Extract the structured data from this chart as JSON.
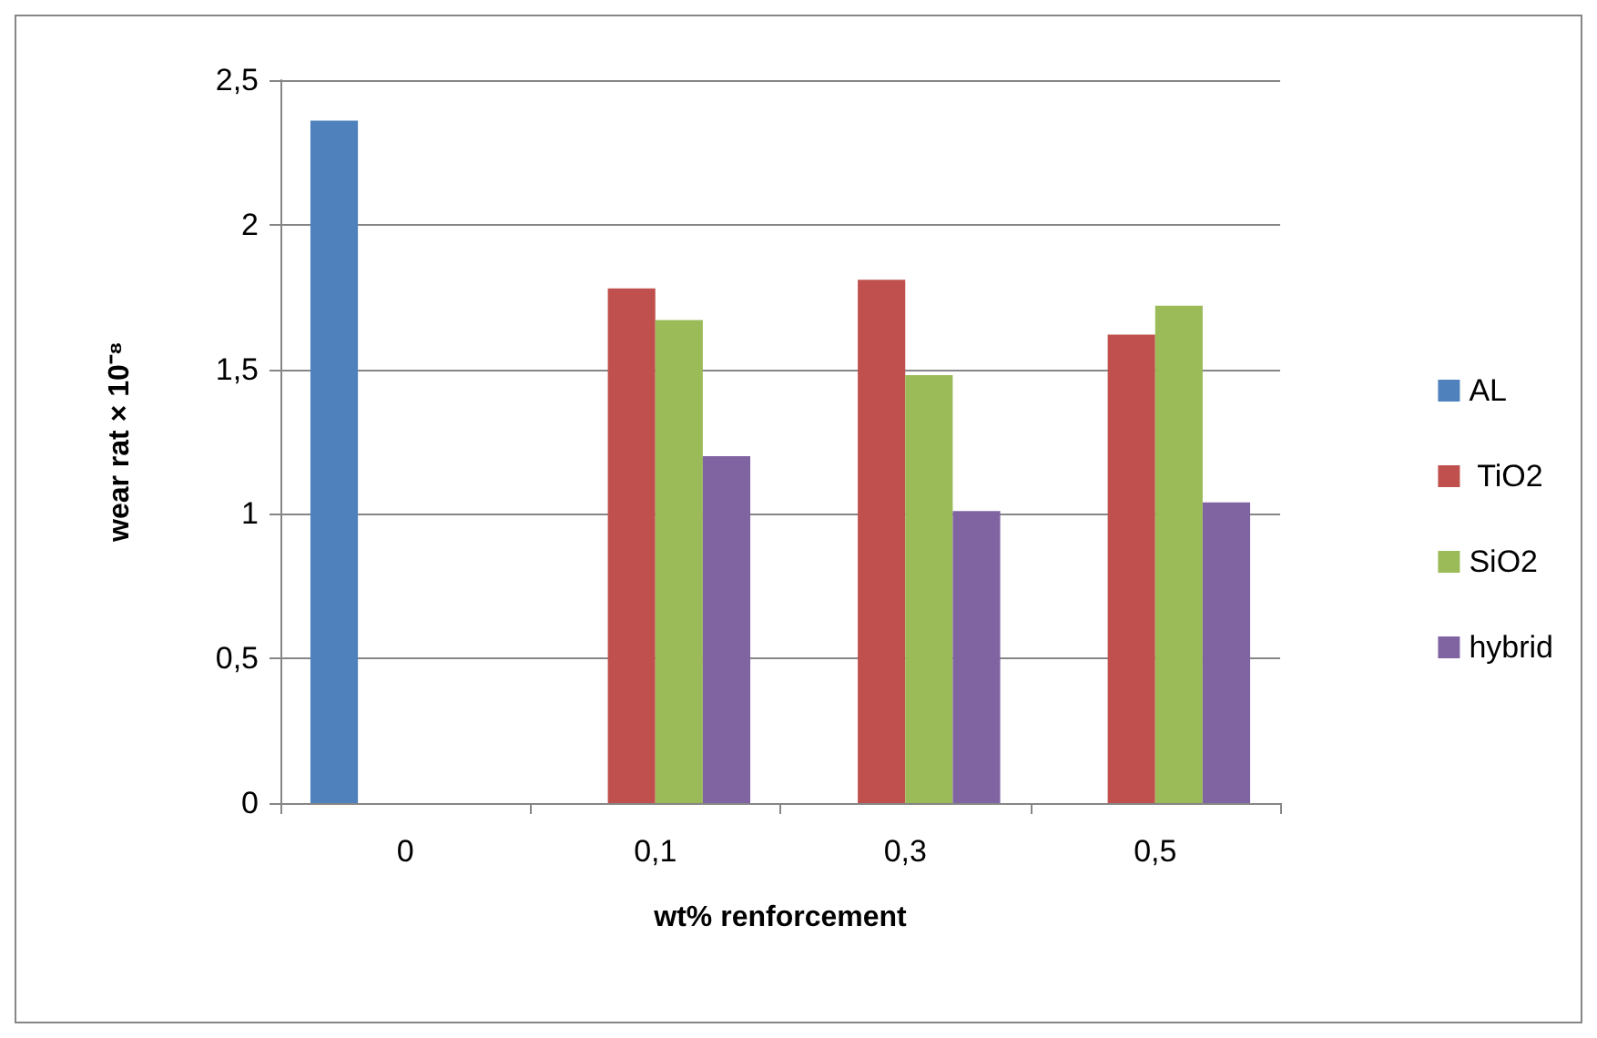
{
  "chart_data": {
    "type": "bar",
    "xlabel": "wt% renforcement",
    "ylabel": "wear rat × 10⁻⁸",
    "categories": [
      "0",
      "0,1",
      "0,3",
      "0,5"
    ],
    "series": [
      {
        "name": "AL",
        "color": "#4f81bd",
        "values": [
          2.36,
          null,
          null,
          null
        ]
      },
      {
        "name": " TiO2",
        "color": "#c0504d",
        "values": [
          null,
          1.78,
          1.81,
          1.62
        ]
      },
      {
        "name": "SiO2",
        "color": "#9bbb59",
        "values": [
          null,
          1.67,
          1.48,
          1.72
        ]
      },
      {
        "name": "hybrid",
        "color": "#8064a2",
        "values": [
          null,
          1.2,
          1.01,
          1.04
        ]
      }
    ],
    "ylim": [
      0,
      2.5
    ],
    "yticks": [
      0,
      {
        "value": 0.5,
        "label": "0,5"
      },
      1,
      {
        "value": 1.5,
        "label": "1,5"
      },
      2,
      {
        "value": 2.5,
        "label": "2,5"
      }
    ],
    "grid": "y",
    "legend": "right"
  }
}
